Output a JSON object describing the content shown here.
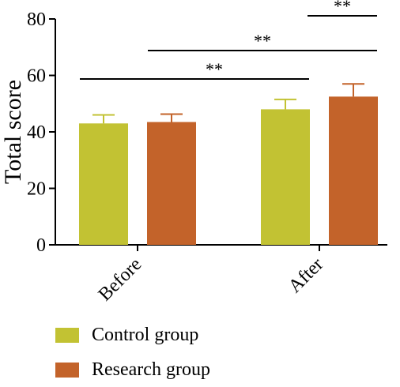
{
  "chart_data": {
    "type": "bar",
    "categories": [
      "Before",
      "After"
    ],
    "series": [
      {
        "name": "Control group",
        "color": "#c2c233",
        "values": [
          43,
          48
        ],
        "errors": [
          3,
          3.5
        ]
      },
      {
        "name": "Research group",
        "color": "#c3632a",
        "values": [
          43.5,
          52.5
        ],
        "errors": [
          2.8,
          4.5
        ]
      }
    ],
    "ylabel": "Total score",
    "xlabel": "",
    "ylim": [
      0,
      80
    ],
    "yticks": [
      "0",
      "20",
      "40",
      "60",
      "80"
    ],
    "grid": false,
    "legend_position": "bottom-left",
    "significance": [
      {
        "label": "**",
        "from": "Before / Control group",
        "to": "After / Control group"
      },
      {
        "label": "**",
        "from": "Before / Research group",
        "to": "After / Research group"
      },
      {
        "label": "**",
        "from": "After / Control group",
        "to": "After / Research group"
      }
    ]
  }
}
